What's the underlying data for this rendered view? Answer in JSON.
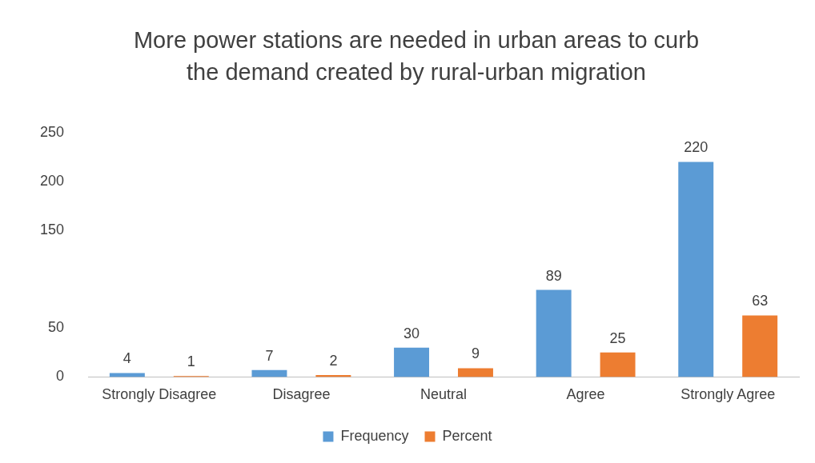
{
  "chart_data": {
    "type": "bar",
    "title": "More power stations are needed in urban areas to curb the demand created by rural-urban migration",
    "categories": [
      "Strongly Disagree",
      "Disagree",
      "Neutral",
      "Agree",
      "Strongly Agree"
    ],
    "series": [
      {
        "name": "Frequency",
        "color": "#5b9bd5",
        "values": [
          4,
          7,
          30,
          89,
          220
        ]
      },
      {
        "name": "Percent",
        "color": "#ed7d31",
        "values": [
          1,
          2,
          9,
          25,
          63
        ]
      }
    ],
    "ylim": [
      0,
      250
    ],
    "yticks": [
      0,
      50,
      150,
      200,
      250
    ],
    "grid": false,
    "legend": "bottom",
    "data_labels": true
  }
}
